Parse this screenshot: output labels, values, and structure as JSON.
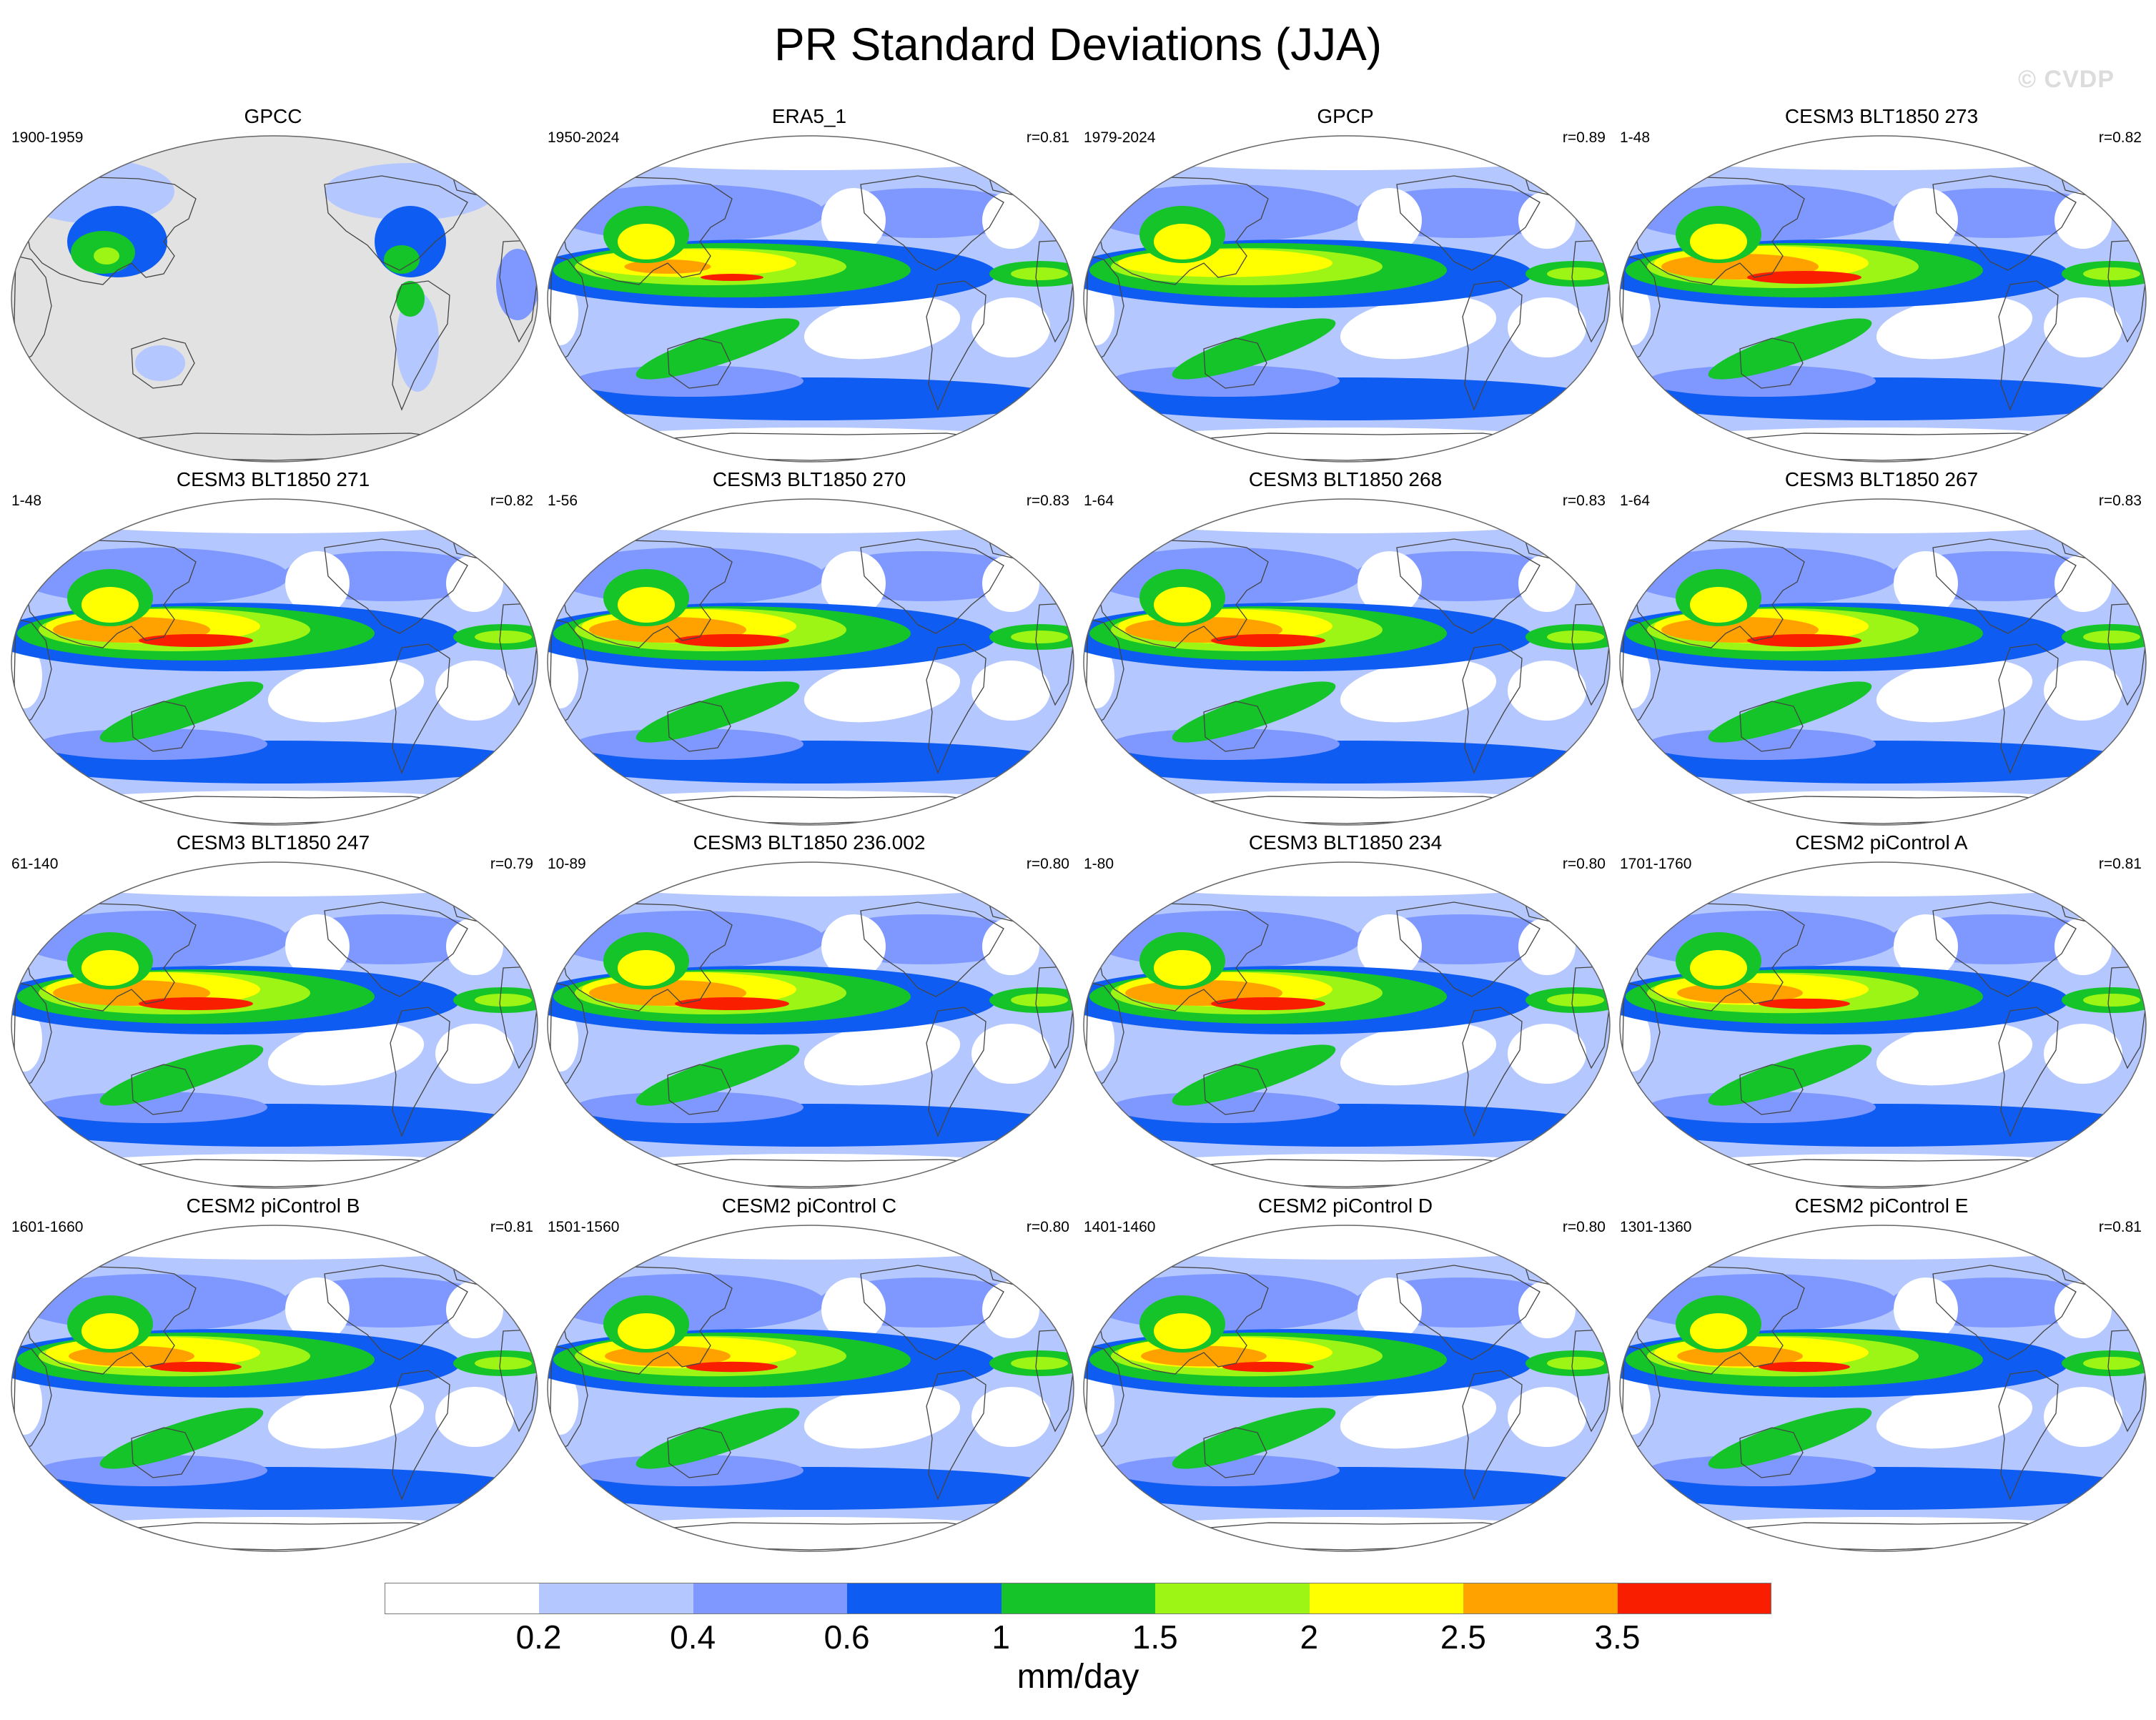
{
  "title": "PR Standard Deviations (JJA)",
  "watermark": "© CVDP",
  "colorbar": {
    "units": "mm/day",
    "labels": [
      "0.2",
      "0.4",
      "0.6",
      "1",
      "1.5",
      "2",
      "2.5",
      "3.5"
    ],
    "colors": [
      "#ffffff",
      "#b4c7ff",
      "#7f98ff",
      "#0f5cf2",
      "#14c428",
      "#9cf514",
      "#ffff00",
      "#ffa200",
      "#fa1e00"
    ]
  },
  "panels": [
    {
      "title": "GPCC",
      "years": "1900-1959",
      "corr": "",
      "style": "obs"
    },
    {
      "title": "ERA5_1",
      "years": "1950-2024",
      "corr": "r=0.81",
      "style": "era"
    },
    {
      "title": "GPCP",
      "years": "1979-2024",
      "corr": "r=0.89",
      "style": "gpcp"
    },
    {
      "title": "CESM3 BLT1850 273",
      "years": "1-48",
      "corr": "r=0.82",
      "style": "model"
    },
    {
      "title": "CESM3 BLT1850 271",
      "years": "1-48",
      "corr": "r=0.82",
      "style": "model"
    },
    {
      "title": "CESM3 BLT1850 270",
      "years": "1-56",
      "corr": "r=0.83",
      "style": "model"
    },
    {
      "title": "CESM3 BLT1850 268",
      "years": "1-64",
      "corr": "r=0.83",
      "style": "model"
    },
    {
      "title": "CESM3 BLT1850 267",
      "years": "1-64",
      "corr": "r=0.83",
      "style": "model"
    },
    {
      "title": "CESM3 BLT1850 247",
      "years": "61-140",
      "corr": "r=0.79",
      "style": "model"
    },
    {
      "title": "CESM3 BLT1850 236.002",
      "years": "10-89",
      "corr": "r=0.80",
      "style": "model"
    },
    {
      "title": "CESM3 BLT1850 234",
      "years": "1-80",
      "corr": "r=0.80",
      "style": "model"
    },
    {
      "title": "CESM2 piControl A",
      "years": "1701-1760",
      "corr": "r=0.81",
      "style": "model2"
    },
    {
      "title": "CESM2 piControl B",
      "years": "1601-1660",
      "corr": "r=0.81",
      "style": "model2"
    },
    {
      "title": "CESM2 piControl C",
      "years": "1501-1560",
      "corr": "r=0.80",
      "style": "model2"
    },
    {
      "title": "CESM2 piControl D",
      "years": "1401-1460",
      "corr": "r=0.80",
      "style": "model2"
    },
    {
      "title": "CESM2 piControl E",
      "years": "1301-1360",
      "corr": "r=0.81",
      "style": "model2"
    }
  ]
}
